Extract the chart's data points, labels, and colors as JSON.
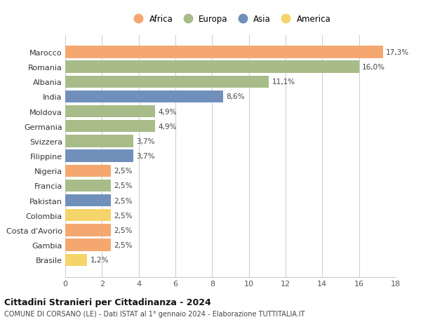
{
  "categories": [
    "Marocco",
    "Romania",
    "Albania",
    "India",
    "Moldova",
    "Germania",
    "Svizzera",
    "Filippine",
    "Nigeria",
    "Francia",
    "Pakistan",
    "Colombia",
    "Costa d'Avorio",
    "Gambia",
    "Brasile"
  ],
  "values": [
    17.3,
    16.0,
    11.1,
    8.6,
    4.9,
    4.9,
    3.7,
    3.7,
    2.5,
    2.5,
    2.5,
    2.5,
    2.5,
    2.5,
    1.2
  ],
  "labels": [
    "17,3%",
    "16,0%",
    "11,1%",
    "8,6%",
    "4,9%",
    "4,9%",
    "3,7%",
    "3,7%",
    "2,5%",
    "2,5%",
    "2,5%",
    "2,5%",
    "2,5%",
    "2,5%",
    "1,2%"
  ],
  "continents": [
    "Africa",
    "Europa",
    "Europa",
    "Asia",
    "Europa",
    "Europa",
    "Europa",
    "Asia",
    "Africa",
    "Europa",
    "Asia",
    "America",
    "Africa",
    "Africa",
    "America"
  ],
  "colors": {
    "Africa": "#F4A870",
    "Europa": "#A8BC8A",
    "Asia": "#7090BB",
    "America": "#F5D46A"
  },
  "legend_order": [
    "Africa",
    "Europa",
    "Asia",
    "America"
  ],
  "xlim": [
    0,
    18
  ],
  "xticks": [
    0,
    2,
    4,
    6,
    8,
    10,
    12,
    14,
    16,
    18
  ],
  "title": "Cittadini Stranieri per Cittadinanza - 2024",
  "subtitle": "COMUNE DI CORSANO (LE) - Dati ISTAT al 1° gennaio 2024 - Elaborazione TUTTITALIA.IT",
  "background_color": "#ffffff",
  "grid_color": "#cccccc",
  "bar_height": 0.82
}
